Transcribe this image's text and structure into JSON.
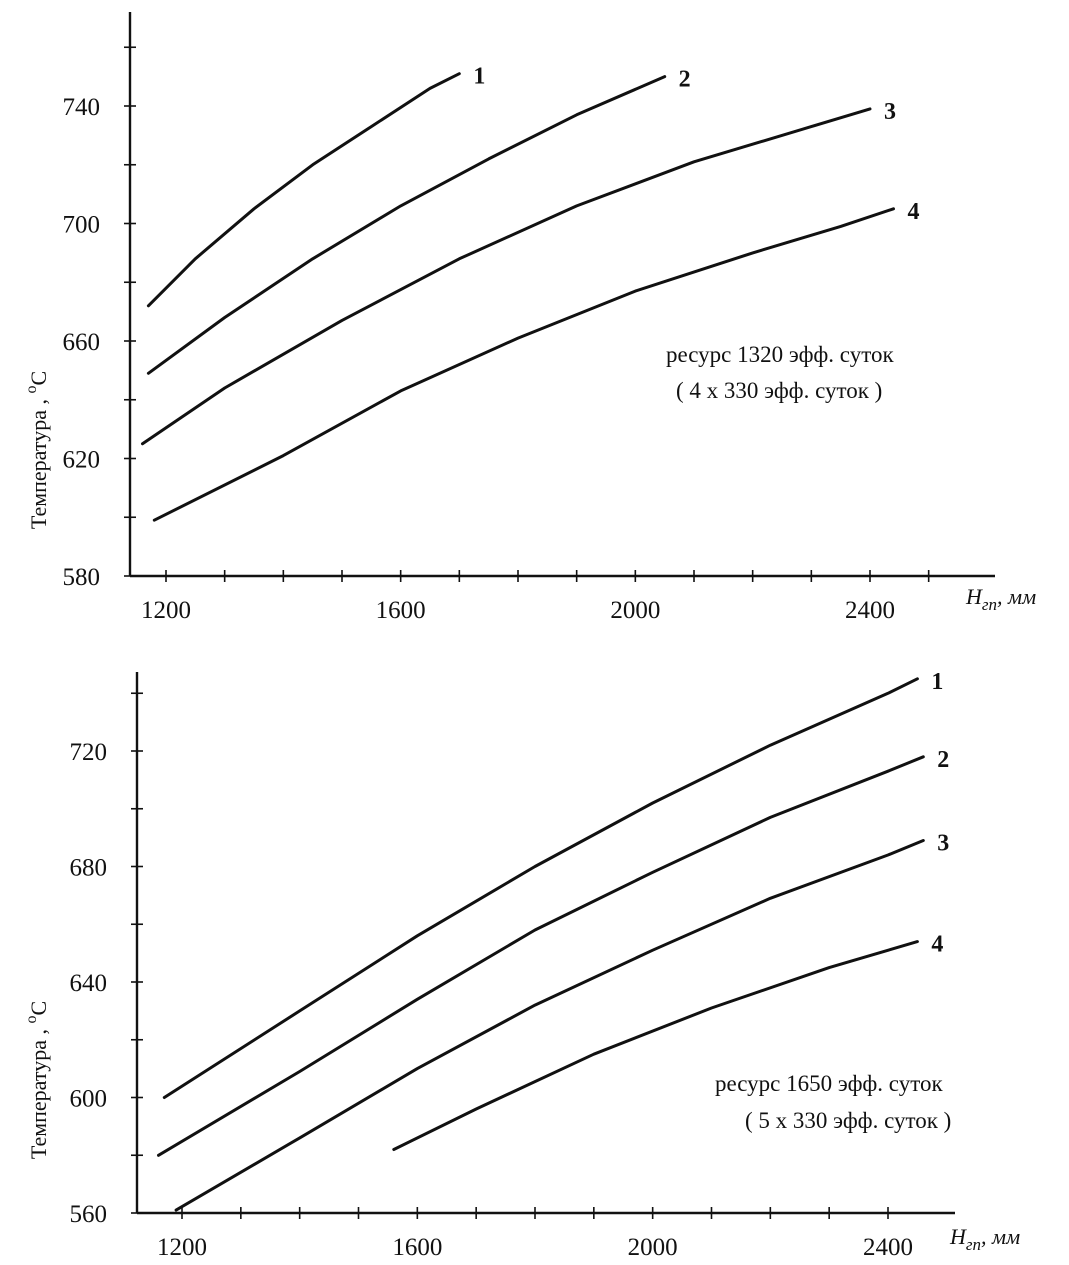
{
  "chart_data": [
    {
      "type": "line",
      "xlabel": "H_гп, мм",
      "xlabel_main": "H",
      "xlabel_sub": "гп",
      "xlabel_unit": ", мм",
      "ylabel": "Температура ,",
      "ylabel_unit_sup": "o",
      "ylabel_unit": "C",
      "xlim": [
        1080,
        2550
      ],
      "ylim": [
        580,
        795
      ],
      "x_ticks": [
        1200,
        1600,
        2000,
        2400
      ],
      "y_ticks": [
        580,
        620,
        660,
        700,
        740
      ],
      "grid": false,
      "annotation": [
        "ресурс 1320 эфф. суток",
        "( 4 x 330 эфф. суток )"
      ],
      "series": [
        {
          "name": "1",
          "x": [
            1170,
            1250,
            1350,
            1450,
            1550,
            1650,
            1700
          ],
          "y": [
            672,
            688,
            705,
            720,
            733,
            746,
            751
          ]
        },
        {
          "name": "2",
          "x": [
            1170,
            1300,
            1450,
            1600,
            1750,
            1900,
            2050
          ],
          "y": [
            649,
            668,
            688,
            706,
            722,
            737,
            750
          ]
        },
        {
          "name": "3",
          "x": [
            1160,
            1300,
            1500,
            1700,
            1900,
            2100,
            2300,
            2400
          ],
          "y": [
            625,
            644,
            667,
            688,
            706,
            721,
            733,
            739
          ]
        },
        {
          "name": "4",
          "x": [
            1180,
            1400,
            1600,
            1800,
            2000,
            2200,
            2350,
            2440
          ],
          "y": [
            599,
            621,
            643,
            661,
            677,
            690,
            699,
            705
          ]
        }
      ]
    },
    {
      "type": "line",
      "xlabel": "H_гп, мм",
      "xlabel_main": "H",
      "xlabel_sub": "гп",
      "xlabel_unit": ", мм",
      "ylabel": "Температура ,",
      "ylabel_unit_sup": "o",
      "ylabel_unit": "C",
      "xlim": [
        1080,
        2550
      ],
      "ylim": [
        560,
        750
      ],
      "x_ticks": [
        1200,
        1600,
        2000,
        2400
      ],
      "y_ticks": [
        560,
        600,
        640,
        680,
        720
      ],
      "grid": false,
      "annotation": [
        "ресурс 1650 эфф. суток",
        "( 5 x 330 эфф. суток )"
      ],
      "series": [
        {
          "name": "1",
          "x": [
            1170,
            1400,
            1600,
            1800,
            2000,
            2200,
            2400,
            2450
          ],
          "y": [
            600,
            630,
            656,
            680,
            702,
            722,
            740,
            745
          ]
        },
        {
          "name": "2",
          "x": [
            1160,
            1400,
            1600,
            1800,
            2000,
            2200,
            2400,
            2460
          ],
          "y": [
            580,
            609,
            634,
            658,
            678,
            697,
            713,
            718
          ]
        },
        {
          "name": "3",
          "x": [
            1190,
            1400,
            1600,
            1800,
            2000,
            2200,
            2400,
            2460
          ],
          "y": [
            561,
            586,
            610,
            632,
            651,
            669,
            684,
            689
          ]
        },
        {
          "name": "4",
          "x": [
            1560,
            1700,
            1900,
            2100,
            2300,
            2450
          ],
          "y": [
            582,
            596,
            615,
            631,
            645,
            654
          ]
        }
      ]
    }
  ]
}
